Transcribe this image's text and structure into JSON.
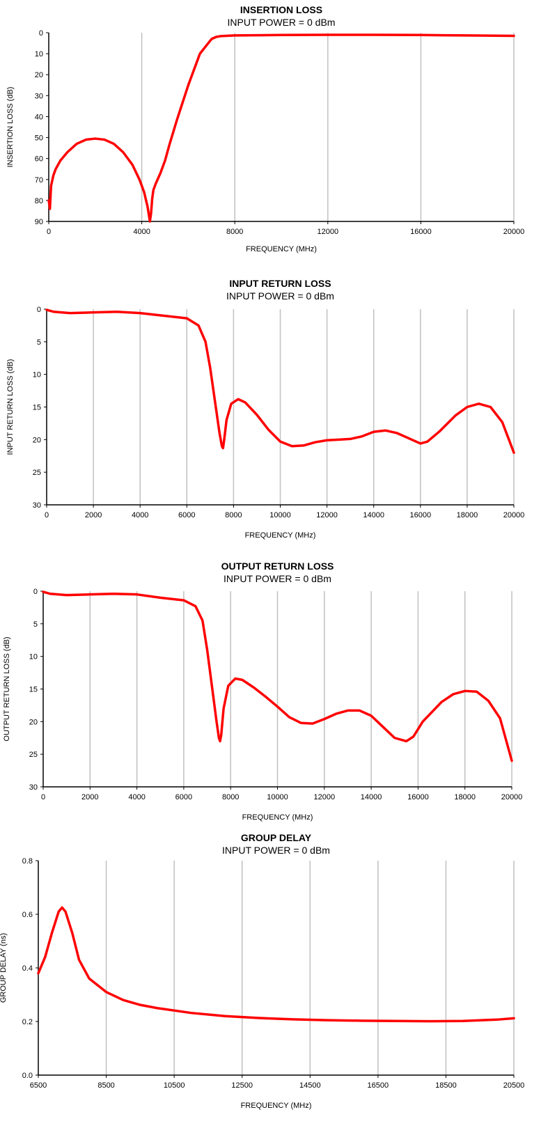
{
  "chart_data": [
    {
      "type": "line",
      "title": "INSERTION LOSS",
      "subtitle": "INPUT POWER = 0 dBm",
      "xlabel": "FREQUENCY (MHz)",
      "ylabel": "INSERTION LOSS (dB)",
      "xlim": [
        0,
        20000
      ],
      "ylim": [
        0,
        90
      ],
      "y_inverted": true,
      "xticks": [
        "0",
        "4000",
        "8000",
        "12000",
        "16000",
        "20000"
      ],
      "yticks": [
        "0",
        "10",
        "20",
        "30",
        "40",
        "50",
        "60",
        "70",
        "80",
        "90"
      ],
      "grid": "vertical",
      "line_color": "#ff0000",
      "series": [
        {
          "x": [
            0,
            50,
            100,
            200,
            300,
            500,
            800,
            1200,
            1600,
            2000,
            2400,
            2800,
            3200,
            3600,
            3900,
            4100,
            4250,
            4350,
            4400,
            4450,
            4500,
            4600,
            4800,
            5000,
            5200,
            5500,
            6000,
            6500,
            7000,
            7200,
            7300,
            7400,
            7600,
            8000,
            10000,
            12000,
            14000,
            16000,
            18000,
            20000
          ],
          "y": [
            80,
            84,
            73,
            68,
            65,
            61,
            57,
            53,
            51,
            50.5,
            51,
            53,
            57,
            63,
            70,
            76,
            83,
            90,
            86,
            79,
            75,
            72,
            67,
            61,
            53,
            42,
            25,
            10,
            3,
            2,
            1.8,
            1.6,
            1.5,
            1.3,
            1.1,
            1.0,
            1.0,
            1.1,
            1.3,
            1.5
          ]
        }
      ]
    },
    {
      "type": "line",
      "title": "INPUT RETURN LOSS",
      "subtitle": "INPUT POWER = 0 dBm",
      "xlabel": "FREQUENCY (MHz)",
      "ylabel": "INPUT RETURN LOSS (dB)",
      "xlim": [
        0,
        20000
      ],
      "ylim": [
        0,
        30
      ],
      "y_inverted": true,
      "xticks": [
        "0",
        "2000",
        "4000",
        "6000",
        "8000",
        "10000",
        "12000",
        "14000",
        "16000",
        "18000",
        "20000"
      ],
      "yticks": [
        "0",
        "5",
        "10",
        "15",
        "20",
        "25",
        "30"
      ],
      "grid": "vertical",
      "line_color": "#ff0000",
      "series": [
        {
          "x": [
            0,
            300,
            1000,
            2000,
            3000,
            4000,
            5000,
            6000,
            6500,
            6800,
            7000,
            7200,
            7400,
            7500,
            7550,
            7600,
            7700,
            7900,
            8200,
            8500,
            9000,
            9500,
            10000,
            10500,
            11000,
            11500,
            12000,
            12500,
            13000,
            13500,
            14000,
            14500,
            15000,
            15500,
            16000,
            16300,
            16800,
            17500,
            18000,
            18500,
            19000,
            19500,
            20000
          ],
          "y": [
            0.1,
            0.4,
            0.6,
            0.5,
            0.4,
            0.6,
            1.0,
            1.4,
            2.5,
            5.0,
            9.0,
            14.0,
            19.0,
            21.0,
            21.3,
            20.0,
            17.0,
            14.5,
            13.8,
            14.3,
            16.2,
            18.5,
            20.3,
            21.0,
            20.9,
            20.4,
            20.1,
            20.0,
            19.9,
            19.5,
            18.8,
            18.6,
            19.0,
            19.8,
            20.6,
            20.3,
            18.8,
            16.3,
            15.0,
            14.5,
            15.0,
            17.3,
            22.0
          ]
        }
      ]
    },
    {
      "type": "line",
      "title": "OUTPUT RETURN LOSS",
      "subtitle": "INPUT POWER = 0 dBm",
      "xlabel": "FREQUENCY (MHz)",
      "ylabel": "OUTPUT RETURN LOSS (dB)",
      "xlim": [
        0,
        20000
      ],
      "ylim": [
        0,
        30
      ],
      "y_inverted": true,
      "xticks": [
        "0",
        "2000",
        "4000",
        "6000",
        "8000",
        "10000",
        "12000",
        "14000",
        "16000",
        "18000",
        "20000"
      ],
      "yticks": [
        "0",
        "5",
        "10",
        "15",
        "20",
        "25",
        "30"
      ],
      "grid": "vertical",
      "line_color": "#ff0000",
      "series": [
        {
          "x": [
            0,
            300,
            1000,
            2000,
            3000,
            4000,
            5000,
            6000,
            6500,
            6800,
            7000,
            7200,
            7400,
            7500,
            7550,
            7600,
            7700,
            7900,
            8200,
            8500,
            9000,
            9500,
            10000,
            10500,
            11000,
            11500,
            12000,
            12500,
            13000,
            13500,
            14000,
            14500,
            15000,
            15500,
            15800,
            16200,
            17000,
            17500,
            18000,
            18500,
            19000,
            19500,
            20000
          ],
          "y": [
            0.1,
            0.4,
            0.6,
            0.5,
            0.4,
            0.5,
            1.0,
            1.4,
            2.3,
            4.5,
            9.0,
            14.5,
            20.0,
            22.5,
            23.0,
            22.0,
            18.0,
            14.5,
            13.4,
            13.6,
            14.8,
            16.2,
            17.7,
            19.3,
            20.2,
            20.3,
            19.6,
            18.8,
            18.3,
            18.3,
            19.1,
            20.8,
            22.5,
            23.0,
            22.3,
            20.0,
            17.0,
            15.8,
            15.3,
            15.4,
            16.8,
            19.5,
            26.0
          ]
        }
      ]
    },
    {
      "type": "line",
      "title": "GROUP DELAY",
      "subtitle": "INPUT POWER = 0 dBm",
      "xlabel": "FREQUENCY (MHz)",
      "ylabel": "GROUP DELAY (ns)",
      "xlim": [
        6500,
        20500
      ],
      "ylim": [
        0,
        0.8
      ],
      "y_inverted": false,
      "xticks": [
        "6500",
        "8500",
        "10500",
        "12500",
        "14500",
        "16500",
        "18500",
        "20500"
      ],
      "yticks": [
        "0.0",
        "0.2",
        "0.4",
        "0.6",
        "0.8"
      ],
      "grid": "vertical",
      "line_color": "#ff0000",
      "series": [
        {
          "x": [
            6500,
            6700,
            6900,
            7100,
            7200,
            7300,
            7500,
            7700,
            8000,
            8500,
            9000,
            9500,
            10000,
            11000,
            12000,
            13000,
            14000,
            15000,
            16000,
            17000,
            18000,
            19000,
            20000,
            20500
          ],
          "y": [
            0.38,
            0.44,
            0.53,
            0.61,
            0.625,
            0.61,
            0.53,
            0.43,
            0.36,
            0.31,
            0.28,
            0.262,
            0.25,
            0.232,
            0.22,
            0.213,
            0.208,
            0.205,
            0.203,
            0.202,
            0.201,
            0.202,
            0.207,
            0.212
          ]
        }
      ]
    }
  ]
}
